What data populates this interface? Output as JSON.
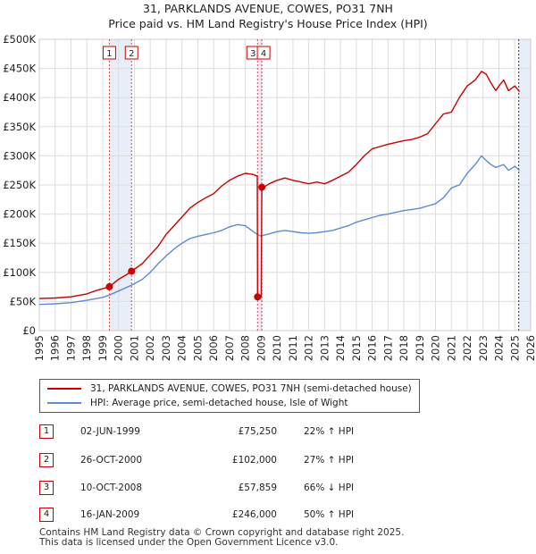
{
  "chart_data": {
    "type": "line",
    "title": "31, PARKLANDS AVENUE, COWES, PO31 7NH",
    "subtitle": "Price paid vs. HM Land Registry's House Price Index (HPI)",
    "ylim": [
      0,
      500000
    ],
    "xlim": [
      1995,
      2026
    ],
    "y_ticks": [
      0,
      50000,
      100000,
      150000,
      200000,
      250000,
      300000,
      350000,
      400000,
      450000,
      500000
    ],
    "y_tick_labels": [
      "£0",
      "£50K",
      "£100K",
      "£150K",
      "£200K",
      "£250K",
      "£300K",
      "£350K",
      "£400K",
      "£450K",
      "£500K"
    ],
    "x_ticks": [
      1995,
      1996,
      1997,
      1998,
      1999,
      2000,
      2001,
      2002,
      2003,
      2004,
      2005,
      2006,
      2007,
      2008,
      2009,
      2010,
      2011,
      2012,
      2013,
      2014,
      2015,
      2016,
      2017,
      2018,
      2019,
      2020,
      2021,
      2022,
      2023,
      2024,
      2025,
      2026
    ],
    "x_tick_labels": [
      "1995",
      "1996",
      "1997",
      "1998",
      "1999",
      "2000",
      "2001",
      "2002",
      "2003",
      "2004",
      "2005",
      "2006",
      "2007",
      "2008",
      "2009",
      "2010",
      "2011",
      "2012",
      "2013",
      "2014",
      "2015",
      "2016",
      "2017",
      "2018",
      "2019",
      "2020",
      "2021",
      "2022",
      "2023",
      "2024",
      "2025",
      "2026"
    ],
    "grid": true,
    "series": [
      {
        "name": "31, PARKLANDS AVENUE, COWES, PO31 7NH (semi-detached house)",
        "color": "#cc0000",
        "x": [
          1995.0,
          1996.0,
          1997.0,
          1998.0,
          1998.5,
          1999.0,
          1999.42,
          2000.0,
          2000.5,
          2000.82,
          2001.5,
          2002.0,
          2002.5,
          2003.0,
          2003.5,
          2004.0,
          2004.5,
          2005.0,
          2005.5,
          2006.0,
          2006.5,
          2007.0,
          2007.5,
          2008.0,
          2008.5,
          2008.75,
          2008.77,
          2008.8,
          2009.0,
          2009.04,
          2009.1,
          2009.5,
          2010.0,
          2010.5,
          2011.0,
          2011.5,
          2012.0,
          2012.5,
          2013.0,
          2013.5,
          2014.0,
          2014.5,
          2015.0,
          2015.5,
          2016.0,
          2016.5,
          2017.0,
          2017.5,
          2018.0,
          2018.5,
          2019.0,
          2019.5,
          2020.0,
          2020.5,
          2021.0,
          2021.5,
          2022.0,
          2022.5,
          2022.9,
          2023.2,
          2023.5,
          2023.8,
          2024.0,
          2024.3,
          2024.6,
          2025.0,
          2025.3
        ],
        "values": [
          55000,
          56000,
          58000,
          63000,
          68000,
          72000,
          75250,
          88000,
          96000,
          102000,
          115000,
          130000,
          145000,
          165000,
          180000,
          195000,
          210000,
          220000,
          228000,
          235000,
          248000,
          258000,
          265000,
          270000,
          268000,
          265000,
          57859,
          57859,
          57859,
          246000,
          245000,
          252000,
          258000,
          262000,
          258000,
          255000,
          252000,
          255000,
          252000,
          258000,
          265000,
          272000,
          285000,
          300000,
          312000,
          316000,
          320000,
          323000,
          326000,
          328000,
          332000,
          338000,
          355000,
          372000,
          375000,
          400000,
          420000,
          430000,
          445000,
          440000,
          425000,
          412000,
          420000,
          430000,
          412000,
          420000,
          410000
        ]
      },
      {
        "name": "HPI: Average price, semi-detached house, Isle of Wight",
        "color": "#5b8bd0",
        "x": [
          1995.0,
          1996.0,
          1997.0,
          1998.0,
          1999.0,
          1999.42,
          2000.0,
          2000.82,
          2001.5,
          2002.0,
          2002.5,
          2003.0,
          2003.5,
          2004.0,
          2004.5,
          2005.0,
          2005.5,
          2006.0,
          2006.5,
          2007.0,
          2007.5,
          2008.0,
          2008.5,
          2008.77,
          2009.0,
          2009.04,
          2009.5,
          2010.0,
          2010.5,
          2011.0,
          2011.5,
          2012.0,
          2012.5,
          2013.0,
          2013.5,
          2014.0,
          2014.5,
          2015.0,
          2015.5,
          2016.0,
          2016.5,
          2017.0,
          2017.5,
          2018.0,
          2018.5,
          2019.0,
          2019.5,
          2020.0,
          2020.5,
          2021.0,
          2021.5,
          2022.0,
          2022.5,
          2022.9,
          2023.2,
          2023.5,
          2023.8,
          2024.0,
          2024.3,
          2024.6,
          2025.0,
          2025.3
        ],
        "values": [
          45000,
          46000,
          48000,
          52000,
          57000,
          61000,
          68000,
          78000,
          88000,
          100000,
          115000,
          128000,
          140000,
          150000,
          158000,
          162000,
          165000,
          168000,
          172000,
          178000,
          182000,
          180000,
          170000,
          165000,
          162000,
          163000,
          166000,
          170000,
          172000,
          170000,
          168000,
          167000,
          168000,
          170000,
          172000,
          176000,
          180000,
          186000,
          190000,
          194000,
          198000,
          200000,
          203000,
          206000,
          208000,
          210000,
          214000,
          218000,
          228000,
          245000,
          250000,
          270000,
          285000,
          300000,
          292000,
          285000,
          280000,
          282000,
          285000,
          275000,
          282000,
          275000
        ]
      }
    ],
    "markers": [
      {
        "id": "1",
        "x": 1999.42,
        "y": 75250
      },
      {
        "id": "2",
        "x": 2000.82,
        "y": 102000
      },
      {
        "id": "3",
        "x": 2008.77,
        "y": 57859
      },
      {
        "id": "4",
        "x": 2009.04,
        "y": 246000
      }
    ],
    "shaded_ranges": [
      [
        1999.42,
        2000.82
      ],
      [
        2008.77,
        2009.04
      ],
      [
        2025.25,
        2026.0
      ]
    ]
  },
  "legend": {
    "red_label": "31, PARKLANDS AVENUE, COWES, PO31 7NH (semi-detached house)",
    "blue_label": "HPI: Average price, semi-detached house, Isle of Wight"
  },
  "transactions": [
    {
      "num": "1",
      "date": "02-JUN-1999",
      "price": "£75,250",
      "hpi": "22% ↑ HPI"
    },
    {
      "num": "2",
      "date": "26-OCT-2000",
      "price": "£102,000",
      "hpi": "27% ↑ HPI"
    },
    {
      "num": "3",
      "date": "10-OCT-2008",
      "price": "£57,859",
      "hpi": "66% ↓ HPI"
    },
    {
      "num": "4",
      "date": "16-JAN-2009",
      "price": "£246,000",
      "hpi": "50% ↑ HPI"
    }
  ],
  "footer": {
    "line1": "Contains HM Land Registry data © Crown copyright and database right 2025.",
    "line2": "This data is licensed under the Open Government Licence v3.0."
  }
}
